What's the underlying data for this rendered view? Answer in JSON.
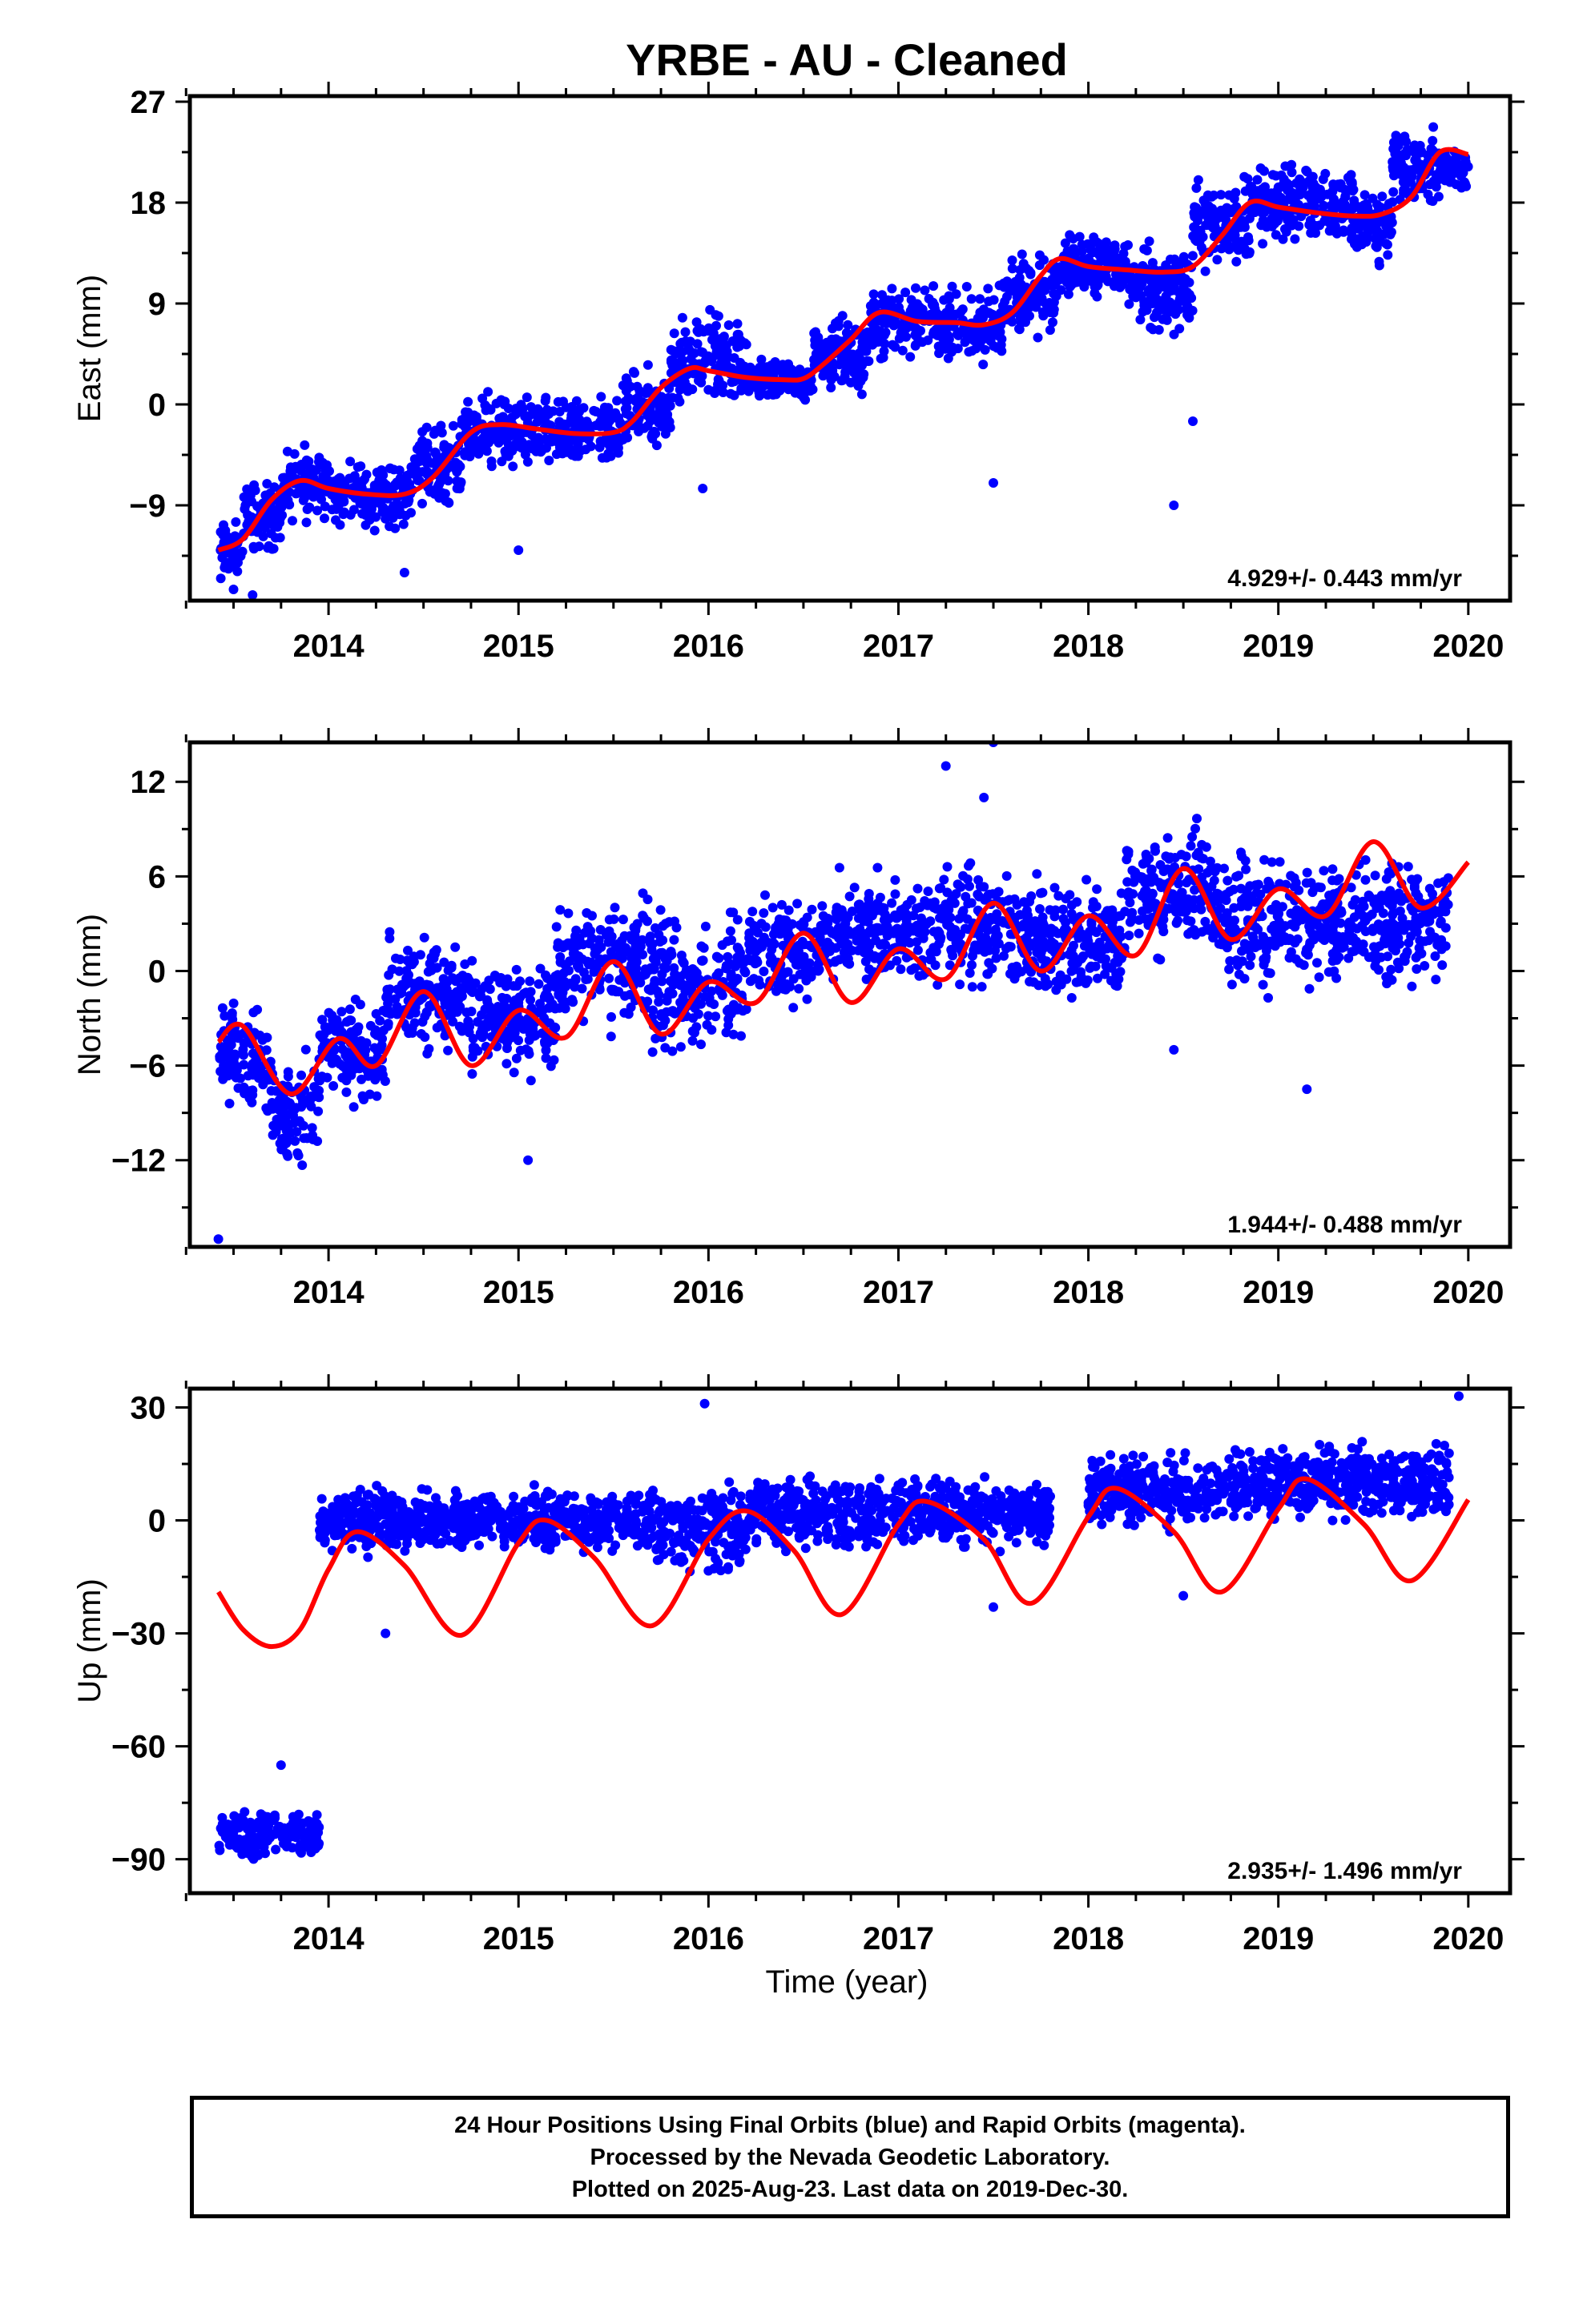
{
  "title": "YRBE  - AU - Cleaned",
  "x_axis_label": "Time (year)",
  "footer": {
    "line1": "24 Hour Positions Using Final Orbits (blue) and Rapid Orbits (magenta).",
    "line2": "Processed by the Nevada Geodetic Laboratory.",
    "line3": "Plotted on 2025-Aug-23. Last data on 2019-Dec-30."
  },
  "colors": {
    "points": "#0000ff",
    "model": "#ff0000",
    "axes": "#000000"
  },
  "chart_data": [
    {
      "type": "scatter",
      "ylabel": "East (mm)",
      "xlim": [
        2013.27,
        2020.22
      ],
      "ylim": [
        -17.5,
        27.5
      ],
      "xticks": [
        2014,
        2015,
        2016,
        2017,
        2018,
        2019,
        2020
      ],
      "yticks": [
        27,
        18,
        9,
        0,
        -9
      ],
      "rate_label": "4.929+/- 0.443 mm/yr",
      "model": {
        "x": [
          2013.42,
          2013.55,
          2013.7,
          2013.85,
          2014.0,
          2014.2,
          2014.4,
          2014.55,
          2014.75,
          2014.9,
          2015.1,
          2015.3,
          2015.5,
          2015.6,
          2015.75,
          2015.9,
          2016.0,
          2016.2,
          2016.4,
          2016.5,
          2016.6,
          2016.75,
          2016.9,
          2017.1,
          2017.3,
          2017.45,
          2017.6,
          2017.75,
          2017.85,
          2018.0,
          2018.2,
          2018.4,
          2018.55,
          2018.7,
          2018.85,
          2019.0,
          2019.2,
          2019.4,
          2019.55,
          2019.7,
          2019.85,
          2020.0
        ],
        "y": [
          -13,
          -12,
          -8.5,
          -6.8,
          -7.5,
          -8,
          -8,
          -6.5,
          -2.5,
          -1.8,
          -2.2,
          -2.6,
          -2.5,
          -1.5,
          1.5,
          3.2,
          3,
          2.4,
          2.2,
          2.3,
          3.5,
          5.8,
          8.2,
          7.4,
          7.3,
          7.1,
          8.2,
          11.5,
          13,
          12.3,
          12,
          11.8,
          12.3,
          15,
          18,
          17.6,
          17.1,
          16.8,
          17,
          18.5,
          22.5,
          22.3
        ]
      },
      "points": {
        "note_bands": [
          [
            2013.42,
            2013.55,
            -13,
            1.6
          ],
          [
            2013.55,
            2013.75,
            -10,
            2.0
          ],
          [
            2013.75,
            2014.0,
            -7,
            2.0
          ],
          [
            2014.0,
            2014.45,
            -8,
            1.8
          ],
          [
            2014.45,
            2014.7,
            -5.5,
            2.2
          ],
          [
            2014.7,
            2015.0,
            -2.5,
            2.0
          ],
          [
            2015.0,
            2015.55,
            -2.5,
            2.0
          ],
          [
            2015.55,
            2015.8,
            -0.5,
            2.2
          ],
          [
            2015.8,
            2016.2,
            4,
            2.5
          ],
          [
            2016.2,
            2016.55,
            2.2,
            1.2
          ],
          [
            2016.55,
            2016.85,
            4.5,
            2.2
          ],
          [
            2016.85,
            2017.55,
            7.2,
            2.0
          ],
          [
            2017.55,
            2017.85,
            10,
            2.2
          ],
          [
            2017.85,
            2018.2,
            12.5,
            1.8
          ],
          [
            2018.2,
            2018.55,
            10,
            2.5
          ],
          [
            2018.55,
            2018.85,
            16,
            2.5
          ],
          [
            2018.85,
            2019.4,
            18,
            2.2
          ],
          [
            2019.4,
            2019.6,
            16,
            2.0
          ],
          [
            2019.6,
            2019.85,
            21,
            2.2
          ],
          [
            2019.85,
            2020.0,
            21,
            1.2
          ]
        ],
        "outliers": [
          [
            2015.97,
            -7.5
          ],
          [
            2017.5,
            -7
          ],
          [
            2018.45,
            -9
          ],
          [
            2018.55,
            -1.5
          ],
          [
            2013.5,
            -16.5
          ],
          [
            2013.6,
            -17
          ],
          [
            2015.0,
            -13
          ],
          [
            2014.4,
            -15
          ]
        ]
      }
    },
    {
      "type": "scatter",
      "ylabel": "North (mm)",
      "xlim": [
        2013.27,
        2020.22
      ],
      "ylim": [
        -17.5,
        14.5
      ],
      "xticks": [
        2014,
        2015,
        2016,
        2017,
        2018,
        2019,
        2020
      ],
      "yticks": [
        12,
        6,
        0,
        -6,
        -12
      ],
      "rate_label": "1.944+/- 0.488 mm/yr",
      "model": {
        "x": [
          2013.42,
          2013.55,
          2013.8,
          2014.05,
          2014.25,
          2014.5,
          2014.75,
          2015.0,
          2015.25,
          2015.5,
          2015.75,
          2016.0,
          2016.25,
          2016.5,
          2016.75,
          2017.0,
          2017.25,
          2017.5,
          2017.75,
          2018.0,
          2018.25,
          2018.5,
          2018.75,
          2019.0,
          2019.25,
          2019.5,
          2019.75,
          2020.0
        ],
        "y": [
          -4.5,
          -3.5,
          -7.8,
          -4.3,
          -6,
          -1.3,
          -6,
          -2.5,
          -4.2,
          0.6,
          -4,
          -0.7,
          -2,
          2.4,
          -2,
          1.4,
          -0.5,
          4.3,
          0,
          3.5,
          1,
          6.5,
          2,
          5.2,
          3.5,
          8.2,
          4,
          6.9
        ]
      },
      "points": {
        "note_bands": [
          [
            2013.42,
            2013.55,
            -5,
            2.0
          ],
          [
            2013.55,
            2013.7,
            -6,
            2.0
          ],
          [
            2013.7,
            2013.95,
            -9,
            2.2
          ],
          [
            2013.95,
            2014.3,
            -5,
            2.0
          ],
          [
            2014.3,
            2014.75,
            -1.5,
            2.2
          ],
          [
            2014.75,
            2015.2,
            -3,
            2.0
          ],
          [
            2015.2,
            2015.7,
            0.5,
            2.4
          ],
          [
            2015.7,
            2016.2,
            -1,
            2.8
          ],
          [
            2016.2,
            2016.6,
            1.5,
            2.2
          ],
          [
            2016.6,
            2017.2,
            2.5,
            2.0
          ],
          [
            2017.2,
            2017.7,
            3,
            2.5
          ],
          [
            2017.7,
            2018.2,
            2.0,
            2.2
          ],
          [
            2018.2,
            2018.7,
            5,
            2.5
          ],
          [
            2018.7,
            2019.3,
            3,
            2.5
          ],
          [
            2019.3,
            2019.9,
            3,
            2.4
          ]
        ],
        "outliers": [
          [
            2013.42,
            -17
          ],
          [
            2015.05,
            -12
          ],
          [
            2017.25,
            13
          ],
          [
            2017.5,
            14.5
          ],
          [
            2017.45,
            11
          ],
          [
            2019.15,
            -7.5
          ],
          [
            2018.45,
            -5
          ]
        ]
      }
    },
    {
      "type": "scatter",
      "ylabel": "Up (mm)",
      "xlim": [
        2013.27,
        2020.22
      ],
      "ylim": [
        -99,
        35
      ],
      "xticks": [
        2014,
        2015,
        2016,
        2017,
        2018,
        2019,
        2020
      ],
      "yticks": [
        30,
        0,
        -30,
        -60,
        -90
      ],
      "rate_label": "2.935+/- 1.496 mm/yr",
      "model": {
        "x": [
          2013.42,
          2013.55,
          2013.7,
          2013.85,
          2014.0,
          2014.15,
          2014.4,
          2014.7,
          2015.0,
          2015.15,
          2015.4,
          2015.7,
          2016.0,
          2016.2,
          2016.45,
          2016.7,
          2017.0,
          2017.15,
          2017.45,
          2017.7,
          2018.0,
          2018.15,
          2018.45,
          2018.7,
          2019.0,
          2019.15,
          2019.45,
          2019.7,
          2020.0
        ],
        "y": [
          -19,
          -29,
          -33.5,
          -29,
          -13,
          -3,
          -12,
          -30.5,
          -6,
          0,
          -10,
          -28,
          -5,
          2.5,
          -8,
          -25,
          -1,
          5,
          -5,
          -22,
          1,
          8.5,
          -3,
          -19,
          3,
          11,
          -1,
          -16,
          5.5
        ]
      },
      "points": {
        "note_bands": [
          [
            2013.42,
            2013.95,
            -83,
            4.0
          ],
          [
            2013.95,
            2014.7,
            0,
            5.0
          ],
          [
            2014.7,
            2015.7,
            0,
            5.0
          ],
          [
            2015.7,
            2016.2,
            -2,
            7.0
          ],
          [
            2016.2,
            2017.0,
            2,
            6.0
          ],
          [
            2017.0,
            2017.8,
            2,
            5.5
          ],
          [
            2018.0,
            2018.7,
            8,
            6.0
          ],
          [
            2018.7,
            2019.2,
            10,
            6.0
          ],
          [
            2019.2,
            2019.9,
            10,
            6.0
          ]
        ],
        "outliers": [
          [
            2015.98,
            31
          ],
          [
            2019.95,
            33
          ],
          [
            2013.75,
            -65
          ],
          [
            2014.3,
            -30
          ],
          [
            2017.5,
            -23
          ],
          [
            2018.5,
            -20
          ]
        ]
      }
    }
  ]
}
